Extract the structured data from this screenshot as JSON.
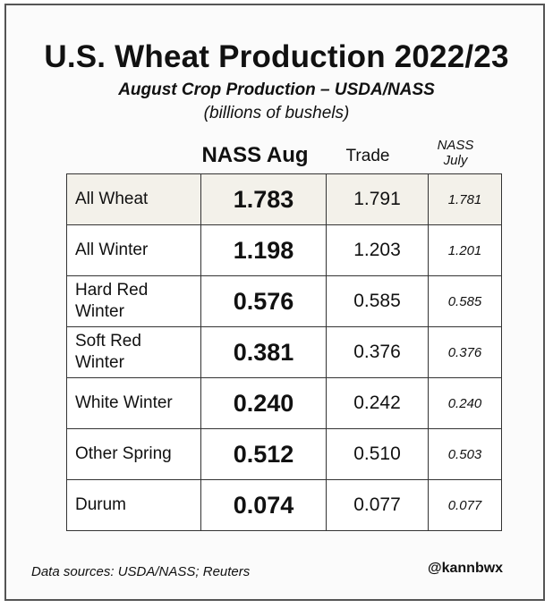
{
  "chart_data": {
    "type": "table",
    "title": "U.S. Wheat Production 2022/23",
    "subtitle": "August Crop Production – USDA/NASS",
    "units": "(billions of bushels)",
    "columns": [
      "NASS Aug",
      "Trade",
      "NASS\nJuly"
    ],
    "rows": [
      {
        "label": "All Wheat",
        "nass_aug": "1.783",
        "trade": "1.791",
        "nass_july": "1.781",
        "highlight": true
      },
      {
        "label": "All Winter",
        "nass_aug": "1.198",
        "trade": "1.203",
        "nass_july": "1.201"
      },
      {
        "label": "Hard Red\nWinter",
        "nass_aug": "0.576",
        "trade": "0.585",
        "nass_july": "0.585"
      },
      {
        "label": "Soft Red\nWinter",
        "nass_aug": "0.381",
        "trade": "0.376",
        "nass_july": "0.376"
      },
      {
        "label": "White Winter",
        "nass_aug": "0.240",
        "trade": "0.242",
        "nass_july": "0.240"
      },
      {
        "label": "Other Spring",
        "nass_aug": "0.512",
        "trade": "0.510",
        "nass_july": "0.503"
      },
      {
        "label": "Durum",
        "nass_aug": "0.074",
        "trade": "0.077",
        "nass_july": "0.077"
      }
    ],
    "colors": {
      "highlight_row": "#f3f1ea",
      "border": "#333333",
      "frame": "#555555"
    }
  },
  "footer": {
    "source": "Data sources: USDA/NASS; Reuters",
    "handle": "@kannbwx"
  }
}
